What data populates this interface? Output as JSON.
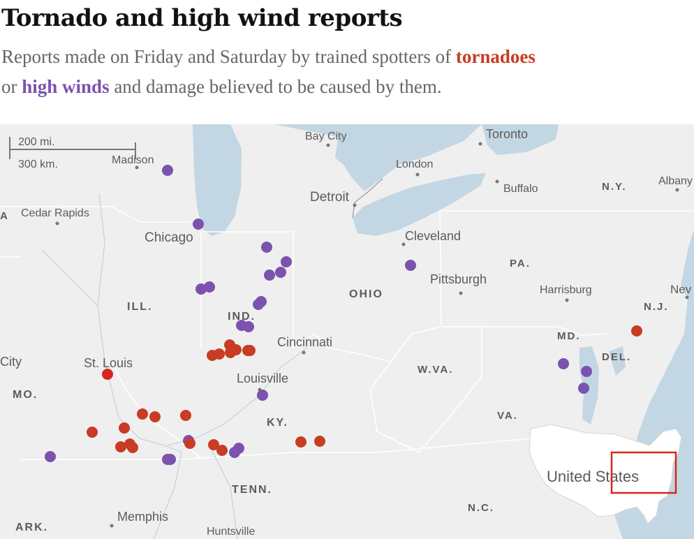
{
  "header": {
    "title": "Tornado and high wind reports",
    "subtitle_start": "Reports made on Friday and Saturday by trained spotters of ",
    "tornadoes": "tornadoes",
    "subtitle_mid": " or ",
    "high_winds": "high winds",
    "subtitle_end": " and damage believed to be caused by them."
  },
  "colors": {
    "tornado": "#c83c23",
    "wind": "#7b52ae",
    "highlight": "#d7261e",
    "water": "#c3d6e3",
    "land": "#efefef"
  },
  "scale": {
    "miles": "200 mi.",
    "km": "300 km."
  },
  "cities": [
    "Bay City",
    "Toronto",
    "Madison",
    "London",
    "Detroit",
    "Buffalo",
    "Albany",
    "Cedar Rapids",
    "Chicago",
    "Cleveland",
    "Pittsburgh",
    "Harrisburg",
    "Cincinnati",
    "St. Louis",
    "Louisville",
    "Memphis",
    "Huntsville",
    "City",
    "Nev"
  ],
  "states": [
    "N.Y.",
    "PA.",
    "OHIO",
    "ILL.",
    "IND.",
    "N.J.",
    "MD.",
    "DEL.",
    "W.VA.",
    "MO.",
    "KY.",
    "VA.",
    "TENN.",
    "N.C.",
    "ARK.",
    "A"
  ],
  "inset": {
    "label": "United States"
  }
}
